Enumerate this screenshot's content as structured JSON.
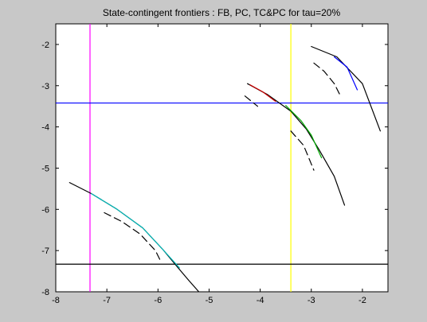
{
  "chart_data": {
    "type": "line",
    "title": "State-contingent frontiers : FB, PC, TC&PC for tau=20%",
    "xlabel": "",
    "ylabel": "",
    "xlim": [
      -8,
      -1.5
    ],
    "ylim": [
      -8,
      -1.5
    ],
    "xticks": [
      -8,
      -7,
      -6,
      -5,
      -4,
      -3,
      -2
    ],
    "yticks": [
      -8,
      -7,
      -6,
      -5,
      -4,
      -3,
      -2
    ],
    "xtick_labels": [
      "-8",
      "-7",
      "-6",
      "-5",
      "-4",
      "-3",
      "-2"
    ],
    "ytick_labels": [
      "-8",
      "-7",
      "-6",
      "-5",
      "-4",
      "-3",
      "-2"
    ],
    "grid": false,
    "legend": "none",
    "reference_lines": [
      {
        "orientation": "vertical",
        "x": -7.33,
        "color": "#ff00ff"
      },
      {
        "orientation": "vertical",
        "x": -3.4,
        "color": "#ffff00"
      },
      {
        "orientation": "horizontal",
        "y": -3.42,
        "color": "#0000ff"
      },
      {
        "orientation": "horizontal",
        "y": -7.33,
        "color": "#000000"
      }
    ],
    "series": [
      {
        "style": "solid",
        "color": "#000000",
        "points": [
          [
            -7.73,
            -5.35
          ],
          [
            -7.3,
            -5.62
          ],
          [
            -6.8,
            -6.0
          ],
          [
            -6.3,
            -6.45
          ],
          [
            -5.9,
            -6.98
          ],
          [
            -5.6,
            -7.43
          ],
          [
            -5.4,
            -7.72
          ],
          [
            -5.2,
            -8.0
          ]
        ]
      },
      {
        "style": "solid",
        "color": "#00bcbc",
        "points": [
          [
            -7.3,
            -5.62
          ],
          [
            -6.8,
            -6.0
          ],
          [
            -6.3,
            -6.45
          ],
          [
            -5.9,
            -6.98
          ],
          [
            -5.58,
            -7.42
          ]
        ]
      },
      {
        "style": "dashed",
        "color": "#000000",
        "points": [
          [
            -7.05,
            -6.08
          ],
          [
            -6.7,
            -6.3
          ],
          [
            -6.35,
            -6.6
          ],
          [
            -6.05,
            -7.0
          ],
          [
            -5.95,
            -7.25
          ]
        ]
      },
      {
        "style": "solid",
        "color": "#000000",
        "points": [
          [
            -4.25,
            -2.95
          ],
          [
            -3.85,
            -3.22
          ],
          [
            -3.4,
            -3.62
          ],
          [
            -3.1,
            -4.05
          ],
          [
            -2.85,
            -4.55
          ],
          [
            -2.55,
            -5.2
          ],
          [
            -2.35,
            -5.9
          ]
        ]
      },
      {
        "style": "solid",
        "color": "#cc0000",
        "points": [
          [
            -4.2,
            -2.98
          ],
          [
            -3.95,
            -3.15
          ],
          [
            -3.7,
            -3.38
          ]
        ]
      },
      {
        "style": "solid",
        "color": "#00aa00",
        "points": [
          [
            -3.5,
            -3.48
          ],
          [
            -3.2,
            -3.85
          ],
          [
            -3.0,
            -4.2
          ],
          [
            -2.8,
            -4.75
          ]
        ]
      },
      {
        "style": "dashed",
        "color": "#000000",
        "points": [
          [
            -4.3,
            -3.25
          ],
          [
            -4.05,
            -3.5
          ]
        ]
      },
      {
        "style": "dashed",
        "color": "#000000",
        "points": [
          [
            -3.4,
            -4.1
          ],
          [
            -3.15,
            -4.45
          ],
          [
            -2.95,
            -5.05
          ]
        ]
      },
      {
        "style": "solid",
        "color": "#000000",
        "points": [
          [
            -3.0,
            -2.05
          ],
          [
            -2.5,
            -2.3
          ],
          [
            -2.0,
            -2.95
          ],
          [
            -1.65,
            -4.1
          ]
        ]
      },
      {
        "style": "solid",
        "color": "#0000ff",
        "points": [
          [
            -2.55,
            -2.3
          ],
          [
            -2.3,
            -2.55
          ],
          [
            -2.1,
            -3.1
          ]
        ]
      },
      {
        "style": "dashed",
        "color": "#000000",
        "points": [
          [
            -2.95,
            -2.45
          ],
          [
            -2.75,
            -2.65
          ],
          [
            -2.55,
            -2.95
          ],
          [
            -2.45,
            -3.2
          ]
        ]
      }
    ]
  }
}
